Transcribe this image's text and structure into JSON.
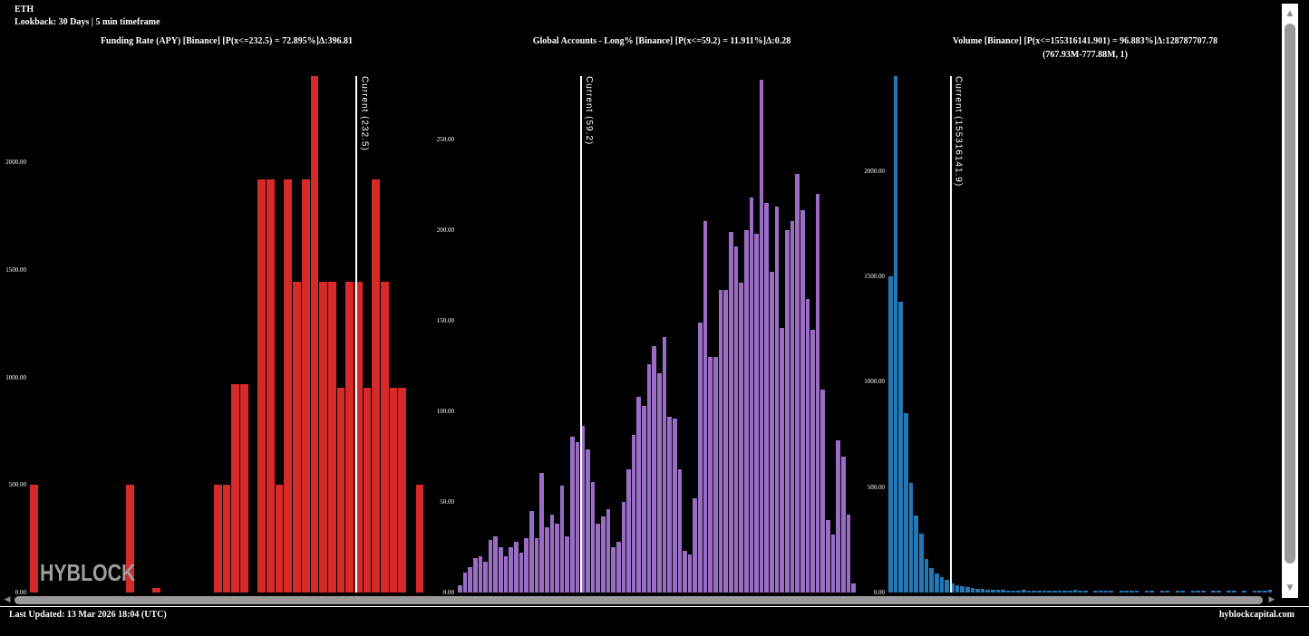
{
  "header": {
    "symbol": "ETH",
    "lookback": "Lookback: 30 Days | 5 min timeframe"
  },
  "watermark": "HYBLOCK",
  "footer": {
    "last_updated": "Last Updated: 13 Mar 2026 18:04 (UTC)",
    "site": "hyblockcapital.com"
  },
  "colors": {
    "background": "#000000",
    "text": "#ffffff",
    "red": "#d62a28",
    "purple": "#9a6dc5",
    "blue": "#2578b6",
    "current_line": "#ffffff",
    "watermark": "#9e9e9e",
    "scrollbar_thumb": "#9a9a9a",
    "scrollbar_track_vertical": "#ffffff"
  },
  "scrollbars": {
    "up_icon": "▲",
    "down_icon": "▼",
    "left_icon": "◀",
    "right_icon": "▶"
  },
  "chart_data": [
    {
      "type": "bar",
      "title": "Funding Rate (APY) [Binance] [P(x<=232.5) = 72.895%]Δ:396.81",
      "subtitle": "",
      "color": "#d62a28",
      "current_label": "Current (232.5)",
      "current_value": 232.5,
      "current_line_pct": 82.8,
      "ylim": [
        0,
        2400
      ],
      "grid": false,
      "legend": "none",
      "yticks": [
        {
          "value": 0,
          "label": "0.00"
        },
        {
          "value": 500,
          "label": "500.00"
        },
        {
          "value": 1000,
          "label": "1000.00"
        },
        {
          "value": 1500,
          "label": "1500.00"
        },
        {
          "value": 2000,
          "label": "2000.00"
        }
      ],
      "values": [
        500,
        0,
        0,
        0,
        0,
        0,
        0,
        0,
        0,
        0,
        0,
        500,
        0,
        0,
        20,
        0,
        0,
        0,
        0,
        0,
        0,
        500,
        500,
        970,
        970,
        0,
        1920,
        1920,
        500,
        1920,
        1445,
        1920,
        2400,
        1445,
        1445,
        950,
        1445,
        1445,
        950,
        1920,
        1445,
        950,
        950,
        0,
        500
      ]
    },
    {
      "type": "bar",
      "title": "Global Accounts - Long% [Binance] [P(x<=59.2) = 11.911%]Δ:0.28",
      "subtitle": "",
      "color": "#9a6dc5",
      "current_label": "Current (59.2)",
      "current_value": 59.2,
      "current_line_pct": 30.0,
      "ylim": [
        0,
        285
      ],
      "grid": false,
      "legend": "none",
      "yticks": [
        {
          "value": 0,
          "label": "0.00"
        },
        {
          "value": 50,
          "label": "50.00"
        },
        {
          "value": 100,
          "label": "100.00"
        },
        {
          "value": 150,
          "label": "150.00"
        },
        {
          "value": 200,
          "label": "200.00"
        },
        {
          "value": 250,
          "label": "250.00"
        }
      ],
      "values": [
        4,
        11,
        14,
        19,
        20,
        17,
        29,
        31,
        25,
        20,
        25,
        28,
        22,
        30,
        45,
        30,
        66,
        36,
        43,
        38,
        59,
        31,
        86,
        83,
        92,
        79,
        61,
        38,
        42,
        46,
        25,
        28,
        50,
        68,
        87,
        108,
        103,
        126,
        136,
        121,
        141,
        97,
        96,
        68,
        23,
        21,
        52,
        149,
        205,
        130,
        130,
        167,
        167,
        199,
        191,
        171,
        200,
        218,
        198,
        283,
        215,
        177,
        213,
        146,
        200,
        205,
        231,
        211,
        162,
        145,
        220,
        112,
        40,
        32,
        84,
        75,
        43,
        5,
        0,
        0
      ]
    },
    {
      "type": "bar",
      "title": "Volume [Binance] [P(x<=155316141.901) = 96.883%]Δ:128787707.78",
      "subtitle": "(767.93M-777.88M, 1)",
      "color": "#2578b6",
      "current_label": "Current (155316141.9)",
      "current_value": 155316141.9,
      "current_line_pct": 15.6,
      "ylim": [
        0,
        2450
      ],
      "grid": false,
      "legend": "none",
      "yticks": [
        {
          "value": 0,
          "label": "0.00"
        },
        {
          "value": 500,
          "label": "500.00"
        },
        {
          "value": 1000,
          "label": "1000.00"
        },
        {
          "value": 1500,
          "label": "1500.00"
        },
        {
          "value": 2000,
          "label": "2000.00"
        }
      ],
      "values": [
        1500,
        2450,
        1380,
        850,
        520,
        366,
        280,
        161,
        115,
        90,
        72,
        60,
        43,
        34,
        28,
        24,
        20,
        18,
        16,
        14,
        13,
        12,
        11,
        10,
        10,
        9,
        12,
        9,
        8,
        8,
        8,
        7,
        10,
        7,
        6,
        6,
        12,
        6,
        5,
        0,
        5,
        8,
        5,
        4,
        0,
        4,
        10,
        4,
        3,
        0,
        3,
        3,
        0,
        8,
        3,
        0,
        2,
        2,
        0,
        2,
        8,
        2,
        0,
        2,
        2,
        0,
        7,
        2,
        0,
        2,
        0,
        2,
        8,
        2,
        12,
        0,
        0
      ]
    }
  ]
}
